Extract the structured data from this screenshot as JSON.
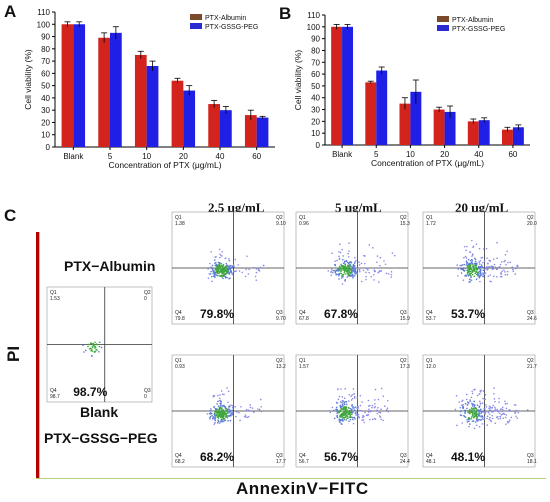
{
  "colors": {
    "albumin": "#d2231c",
    "peg": "#1f1fe6",
    "albumin_legend": "#7a4a2a",
    "peg_legend": "#2a2ad0",
    "border_green": "#b5d17a",
    "border_red": "#b30000"
  },
  "chart_data": [
    {
      "panel": "A",
      "type": "bar",
      "categories": [
        "Blank",
        "5",
        "10",
        "20",
        "40",
        "60"
      ],
      "series": [
        {
          "name": "PTX-Albumin",
          "values": [
            100,
            89,
            75,
            54,
            35,
            26
          ],
          "errors": [
            2,
            4,
            3,
            2,
            3,
            4
          ]
        },
        {
          "name": "PTX-GSSG-PEG",
          "values": [
            100,
            93,
            66,
            46,
            30,
            24
          ],
          "errors": [
            2,
            5,
            4,
            4,
            3,
            1
          ]
        }
      ],
      "xlabel": "Concentration of PTX (μg/mL)",
      "ylabel": "Cell viability (%)",
      "ylim": [
        0,
        110
      ],
      "yticks": [
        0,
        10,
        20,
        30,
        40,
        50,
        60,
        70,
        80,
        90,
        100,
        110
      ],
      "legend": "top-right"
    },
    {
      "panel": "B",
      "type": "bar",
      "categories": [
        "Blank",
        "5",
        "10",
        "20",
        "40",
        "60"
      ],
      "series": [
        {
          "name": "PTX-Albumin",
          "values": [
            100,
            53,
            35,
            30,
            20,
            13
          ],
          "errors": [
            2,
            1,
            5,
            2,
            2,
            2
          ]
        },
        {
          "name": "PTX-GSSG-PEG",
          "values": [
            100,
            63,
            45,
            28,
            21,
            15
          ],
          "errors": [
            2,
            3,
            10,
            5,
            2,
            2
          ]
        }
      ],
      "xlabel": "Concentration of PTX (μg/mL)",
      "ylabel": "Cell viability (%)",
      "ylim": [
        0,
        110
      ],
      "yticks": [
        0,
        10,
        20,
        30,
        40,
        50,
        60,
        70,
        80,
        90,
        100,
        110
      ],
      "legend": "top-right"
    }
  ],
  "panel_c": {
    "letter": "C",
    "concentrations": [
      "2.5 μg/mL",
      "5 μg/mL",
      "20 μg/mL"
    ],
    "group_top": "PTX−Albumin",
    "group_bottom": "PTX−GSSG−PEG",
    "blank_label": "Blank",
    "y_axis_label": "PI",
    "x_axis_label": "AnnexinV−FITC",
    "blank_plot": {
      "q1": "Q1\n1.53",
      "q2": "Q2\n0",
      "q3": "Q3\n0",
      "q4": "Q4\n98.7",
      "big": "98.7%"
    },
    "albumin_plots": [
      {
        "q1": "Q1\n1.38",
        "q2": "Q2\n9.10",
        "q3": "Q3\n9.70",
        "q4": "Q4\n79.8",
        "big": "79.8%"
      },
      {
        "q1": "Q1\n0.96",
        "q2": "Q2\n15.3",
        "q3": "Q3\n15.9",
        "q4": "Q4\n67.8",
        "big": "67.8%"
      },
      {
        "q1": "Q1\n1.72",
        "q2": "Q2\n20.0",
        "q3": "Q3\n24.6",
        "q4": "Q4\n53.7",
        "big": "53.7%"
      }
    ],
    "peg_plots": [
      {
        "q1": "Q1\n0.93",
        "q2": "Q2\n13.2",
        "q3": "Q3\n17.7",
        "q4": "Q4\n68.2",
        "big": "68.2%"
      },
      {
        "q1": "Q1\n1.57",
        "q2": "Q2\n17.3",
        "q3": "Q3\n24.4",
        "q4": "Q4\n56.7",
        "big": "56.7%"
      },
      {
        "q1": "Q1\n12.0",
        "q2": "Q2\n21.7",
        "q3": "Q3\n18.1",
        "q4": "Q4\n48.1",
        "big": "48.1%"
      }
    ]
  }
}
